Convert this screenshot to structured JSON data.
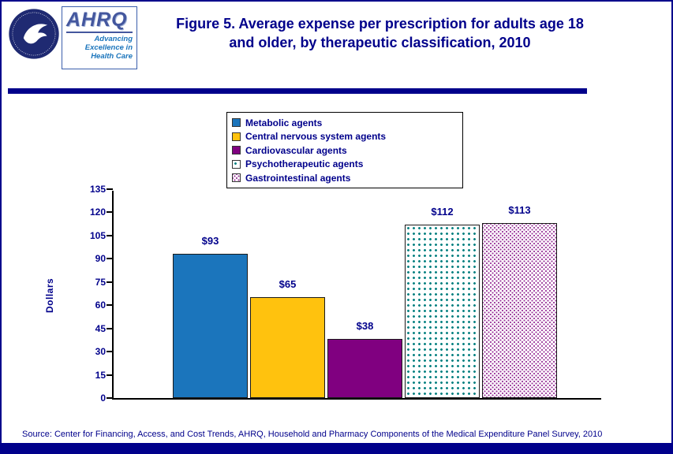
{
  "header": {
    "logo": {
      "hhs_icon": "hhs-eagle-seal-icon",
      "org_abbrev": "AHRQ",
      "tagline_line1": "Advancing",
      "tagline_line2": "Excellence in",
      "tagline_line3": "Health Care"
    },
    "title_line1": "Figure 5. Average expense per prescription for adults age 18",
    "title_line2": "and older, by therapeutic classification, 2010"
  },
  "chart_data": {
    "type": "bar",
    "title": "Figure 5. Average expense per prescription for adults age 18 and older, by therapeutic classification, 2010",
    "categories": [
      "Metabolic agents",
      "Central nervous system agents",
      "Cardiovascular agents",
      "Psychotherapeutic agents",
      "Gastrointestinal agents"
    ],
    "values": [
      93,
      65,
      38,
      112,
      113
    ],
    "data_labels": [
      "$93",
      "$65",
      "$38",
      "$112",
      "$113"
    ],
    "xlabel": "",
    "ylabel": "Dollars",
    "ylim": [
      0,
      135
    ],
    "ytick_interval": 15,
    "yticks": [
      0,
      15,
      30,
      45,
      60,
      75,
      90,
      105,
      120,
      135
    ],
    "grid": false,
    "legend_position": "top-center-boxed",
    "series_styles": [
      {
        "fill": "#1B75BC",
        "pattern": "solid"
      },
      {
        "fill": "#FFC20E",
        "pattern": "solid"
      },
      {
        "fill": "#800080",
        "pattern": "solid"
      },
      {
        "fill": "#008080",
        "pattern": "dots"
      },
      {
        "fill": "#993399",
        "pattern": "lattice"
      }
    ]
  },
  "footer": {
    "source": "Source: Center for Financing, Access, and Cost Trends, AHRQ,  Household and Pharmacy Components of the Medical Expenditure Panel Survey,  2010"
  },
  "colors": {
    "navy": "#00008B",
    "title_text": "#00008B",
    "axis": "#000000",
    "legend_border": "#000000",
    "divider": "#00008B",
    "bottom_bar": "#00008B"
  }
}
